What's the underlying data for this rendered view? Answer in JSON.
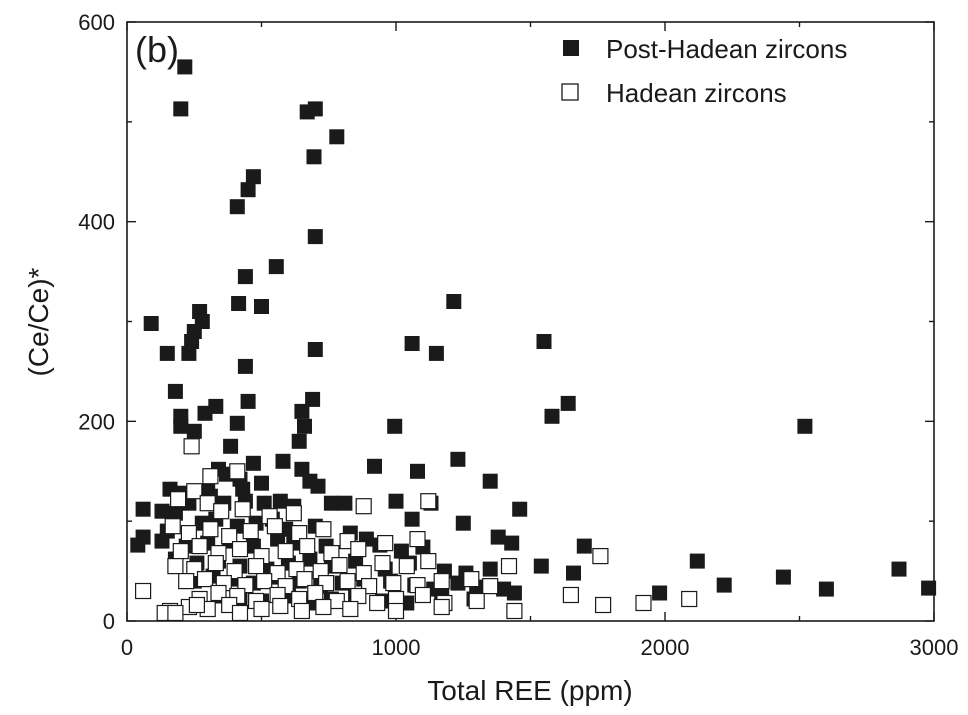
{
  "panel_label": "(b)",
  "chart_data": {
    "type": "scatter",
    "xlabel": "Total REE (ppm)",
    "ylabel": "(Ce/Ce)*",
    "xlim": [
      0,
      3000
    ],
    "ylim": [
      0,
      600
    ],
    "x_ticks": [
      0,
      1000,
      2000,
      3000
    ],
    "y_ticks": [
      0,
      200,
      400,
      600
    ],
    "x_tick_labels": [
      "0",
      "1000",
      "2000",
      "3000"
    ],
    "y_tick_labels": [
      "0",
      "200",
      "400",
      "600"
    ],
    "grid": false,
    "legend_position": "top-right",
    "series": [
      {
        "name": "Post-Hadean zircons",
        "marker": "filled-square",
        "color": "#1a1a1a",
        "points": [
          [
            215,
            555
          ],
          [
            200,
            513
          ],
          [
            700,
            513
          ],
          [
            670,
            510
          ],
          [
            780,
            485
          ],
          [
            695,
            465
          ],
          [
            470,
            445
          ],
          [
            450,
            432
          ],
          [
            410,
            415
          ],
          [
            700,
            385
          ],
          [
            440,
            345
          ],
          [
            555,
            355
          ],
          [
            500,
            315
          ],
          [
            415,
            318
          ],
          [
            1215,
            320
          ],
          [
            280,
            300
          ],
          [
            90,
            298
          ],
          [
            270,
            310
          ],
          [
            250,
            290
          ],
          [
            240,
            280
          ],
          [
            230,
            268
          ],
          [
            150,
            268
          ],
          [
            440,
            255
          ],
          [
            1060,
            278
          ],
          [
            1150,
            268
          ],
          [
            1550,
            280
          ],
          [
            700,
            272
          ],
          [
            180,
            230
          ],
          [
            200,
            205
          ],
          [
            290,
            208
          ],
          [
            330,
            215
          ],
          [
            450,
            220
          ],
          [
            690,
            222
          ],
          [
            650,
            210
          ],
          [
            410,
            198
          ],
          [
            200,
            195
          ],
          [
            250,
            190
          ],
          [
            385,
            175
          ],
          [
            640,
            180
          ],
          [
            660,
            195
          ],
          [
            995,
            195
          ],
          [
            1580,
            205
          ],
          [
            1640,
            218
          ],
          [
            2520,
            195
          ],
          [
            580,
            160
          ],
          [
            470,
            158
          ],
          [
            1230,
            162
          ],
          [
            920,
            155
          ],
          [
            650,
            152
          ],
          [
            340,
            152
          ],
          [
            370,
            147
          ],
          [
            420,
            142
          ],
          [
            500,
            138
          ],
          [
            430,
            132
          ],
          [
            300,
            130
          ],
          [
            200,
            128
          ],
          [
            710,
            135
          ],
          [
            680,
            140
          ],
          [
            1350,
            140
          ],
          [
            1080,
            150
          ],
          [
            160,
            132
          ],
          [
            230,
            118
          ],
          [
            310,
            125
          ],
          [
            360,
            118
          ],
          [
            440,
            120
          ],
          [
            510,
            118
          ],
          [
            570,
            120
          ],
          [
            620,
            115
          ],
          [
            760,
            118
          ],
          [
            810,
            118
          ],
          [
            130,
            110
          ],
          [
            180,
            108
          ],
          [
            60,
            112
          ],
          [
            1000,
            120
          ],
          [
            1130,
            118
          ],
          [
            1460,
            112
          ],
          [
            1060,
            102
          ],
          [
            1250,
            98
          ],
          [
            150,
            90
          ],
          [
            280,
            98
          ],
          [
            330,
            102
          ],
          [
            410,
            95
          ],
          [
            480,
            98
          ],
          [
            540,
            102
          ],
          [
            590,
            92
          ],
          [
            700,
            95
          ],
          [
            60,
            84
          ],
          [
            40,
            76
          ],
          [
            130,
            80
          ],
          [
            220,
            75
          ],
          [
            300,
            78
          ],
          [
            380,
            80
          ],
          [
            470,
            75
          ],
          [
            560,
            82
          ],
          [
            620,
            78
          ],
          [
            740,
            75
          ],
          [
            830,
            88
          ],
          [
            890,
            82
          ],
          [
            940,
            76
          ],
          [
            1020,
            70
          ],
          [
            1100,
            74
          ],
          [
            1380,
            84
          ],
          [
            1430,
            78
          ],
          [
            1700,
            75
          ],
          [
            180,
            62
          ],
          [
            260,
            58
          ],
          [
            340,
            60
          ],
          [
            420,
            55
          ],
          [
            520,
            52
          ],
          [
            600,
            58
          ],
          [
            680,
            62
          ],
          [
            760,
            55
          ],
          [
            850,
            60
          ],
          [
            960,
            52
          ],
          [
            1050,
            58
          ],
          [
            1180,
            50
          ],
          [
            1260,
            48
          ],
          [
            1350,
            52
          ],
          [
            1420,
            55
          ],
          [
            1540,
            55
          ],
          [
            1660,
            48
          ],
          [
            2120,
            60
          ],
          [
            250,
            40
          ],
          [
            320,
            45
          ],
          [
            400,
            42
          ],
          [
            470,
            38
          ],
          [
            560,
            44
          ],
          [
            640,
            40
          ],
          [
            720,
            35
          ],
          [
            800,
            38
          ],
          [
            880,
            42
          ],
          [
            980,
            40
          ],
          [
            1070,
            36
          ],
          [
            1140,
            32
          ],
          [
            1230,
            38
          ],
          [
            1300,
            34
          ],
          [
            1400,
            32
          ],
          [
            1440,
            28
          ],
          [
            2220,
            36
          ],
          [
            2440,
            44
          ],
          [
            2870,
            52
          ],
          [
            2600,
            32
          ],
          [
            2980,
            33
          ],
          [
            1980,
            28
          ],
          [
            340,
            25
          ],
          [
            420,
            22
          ],
          [
            500,
            20
          ],
          [
            600,
            25
          ],
          [
            680,
            18
          ],
          [
            760,
            22
          ],
          [
            850,
            25
          ],
          [
            950,
            20
          ],
          [
            1040,
            18
          ],
          [
            1170,
            25
          ],
          [
            1290,
            22
          ]
        ]
      },
      {
        "name": "Hadean zircons",
        "marker": "open-square",
        "color": "#1a1a1a",
        "points": [
          [
            240,
            175
          ],
          [
            310,
            145
          ],
          [
            410,
            150
          ],
          [
            250,
            130
          ],
          [
            300,
            118
          ],
          [
            190,
            122
          ],
          [
            880,
            115
          ],
          [
            1120,
            120
          ],
          [
            350,
            110
          ],
          [
            430,
            112
          ],
          [
            530,
            105
          ],
          [
            620,
            108
          ],
          [
            170,
            95
          ],
          [
            230,
            88
          ],
          [
            310,
            92
          ],
          [
            380,
            85
          ],
          [
            460,
            90
          ],
          [
            550,
            95
          ],
          [
            640,
            88
          ],
          [
            730,
            92
          ],
          [
            820,
            80
          ],
          [
            960,
            78
          ],
          [
            1080,
            82
          ],
          [
            200,
            70
          ],
          [
            270,
            75
          ],
          [
            340,
            68
          ],
          [
            420,
            72
          ],
          [
            500,
            65
          ],
          [
            590,
            70
          ],
          [
            670,
            75
          ],
          [
            760,
            68
          ],
          [
            860,
            72
          ],
          [
            180,
            55
          ],
          [
            250,
            52
          ],
          [
            330,
            58
          ],
          [
            400,
            50
          ],
          [
            480,
            55
          ],
          [
            560,
            48
          ],
          [
            630,
            52
          ],
          [
            720,
            50
          ],
          [
            790,
            56
          ],
          [
            880,
            48
          ],
          [
            950,
            58
          ],
          [
            1040,
            55
          ],
          [
            1120,
            60
          ],
          [
            1420,
            55
          ],
          [
            1760,
            65
          ],
          [
            220,
            40
          ],
          [
            290,
            42
          ],
          [
            360,
            38
          ],
          [
            440,
            36
          ],
          [
            510,
            40
          ],
          [
            590,
            35
          ],
          [
            660,
            42
          ],
          [
            740,
            38
          ],
          [
            820,
            40
          ],
          [
            900,
            35
          ],
          [
            990,
            38
          ],
          [
            1080,
            36
          ],
          [
            1170,
            40
          ],
          [
            1280,
            42
          ],
          [
            1350,
            35
          ],
          [
            270,
            22
          ],
          [
            340,
            28
          ],
          [
            410,
            25
          ],
          [
            480,
            20
          ],
          [
            560,
            26
          ],
          [
            640,
            22
          ],
          [
            700,
            28
          ],
          [
            780,
            20
          ],
          [
            860,
            25
          ],
          [
            930,
            18
          ],
          [
            1000,
            22
          ],
          [
            1100,
            26
          ],
          [
            1180,
            18
          ],
          [
            1300,
            20
          ],
          [
            160,
            10
          ],
          [
            230,
            14
          ],
          [
            300,
            12
          ],
          [
            380,
            16
          ],
          [
            420,
            8
          ],
          [
            500,
            12
          ],
          [
            570,
            15
          ],
          [
            650,
            10
          ],
          [
            730,
            14
          ],
          [
            830,
            12
          ],
          [
            1000,
            10
          ],
          [
            1170,
            14
          ],
          [
            1440,
            10
          ],
          [
            1770,
            16
          ],
          [
            1920,
            18
          ],
          [
            2090,
            22
          ],
          [
            1650,
            26
          ],
          [
            140,
            8
          ],
          [
            60,
            30
          ],
          [
            180,
            8
          ],
          [
            260,
            16
          ]
        ]
      }
    ]
  }
}
